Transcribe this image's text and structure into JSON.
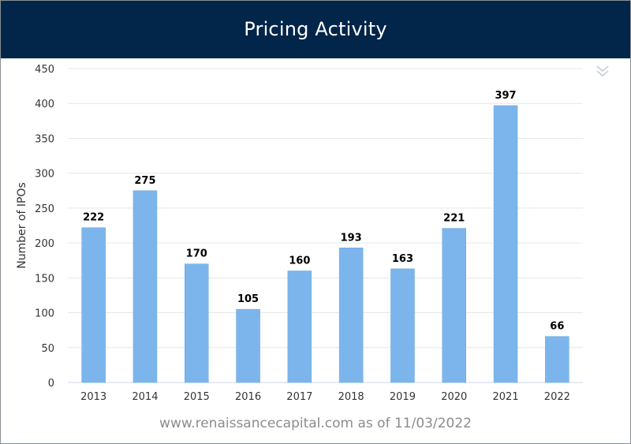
{
  "header": {
    "title": "Pricing Activity"
  },
  "menu": {
    "icon": "double-chevron-down-icon"
  },
  "footer": {
    "source": "www.renaissancecapital.com as of 11/03/2022"
  },
  "colors": {
    "header_bg": "#02254a",
    "bar": "#7cb5ec",
    "grid": "#e6e6e6",
    "axis_text": "#333333"
  },
  "chart_data": {
    "type": "bar",
    "title": "Pricing Activity",
    "xlabel": "",
    "ylabel": "Number of IPOs",
    "categories": [
      "2013",
      "2014",
      "2015",
      "2016",
      "2017",
      "2018",
      "2019",
      "2020",
      "2021",
      "2022"
    ],
    "series": [
      {
        "values": [
          222,
          275,
          170,
          105,
          160,
          193,
          163,
          221,
          397,
          66
        ]
      }
    ],
    "ylim": [
      0,
      450
    ],
    "yticks": [
      0,
      50,
      100,
      150,
      200,
      250,
      300,
      350,
      400,
      450
    ],
    "grid": true,
    "data_labels": true,
    "legend": "none"
  }
}
